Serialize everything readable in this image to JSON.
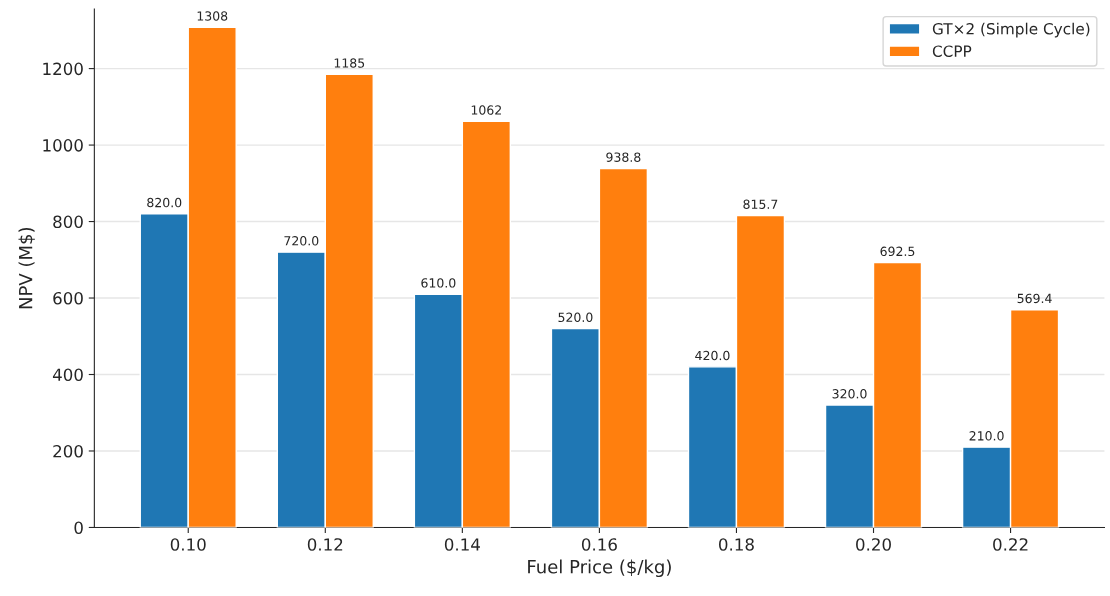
{
  "chart_data": {
    "type": "bar",
    "xlabel": "Fuel Price ($/kg)",
    "ylabel": "NPV (M$)",
    "categories": [
      "0.10",
      "0.12",
      "0.14",
      "0.16",
      "0.18",
      "0.20",
      "0.22"
    ],
    "series": [
      {
        "name": "GT×2 (Simple Cycle)",
        "color": "#1f77b4",
        "values": [
          820,
          720,
          610,
          520,
          420,
          320,
          210
        ],
        "value_labels": [
          "820.0",
          "720.0",
          "610.0",
          "520.0",
          "420.0",
          "320.0",
          "210.0"
        ]
      },
      {
        "name": "CCPP",
        "color": "#ff7f0e",
        "values": [
          1308,
          1185,
          1062,
          938.8,
          815.7,
          692.5,
          569.4
        ],
        "value_labels": [
          "1308",
          "1185",
          "1062",
          "938.8",
          "815.7",
          "692.5",
          "569.4"
        ]
      }
    ],
    "ylim": [
      0,
      1356
    ],
    "yticks": [
      0,
      200,
      400,
      600,
      800,
      1000,
      1200
    ],
    "grid": "y",
    "legend": "top right"
  }
}
